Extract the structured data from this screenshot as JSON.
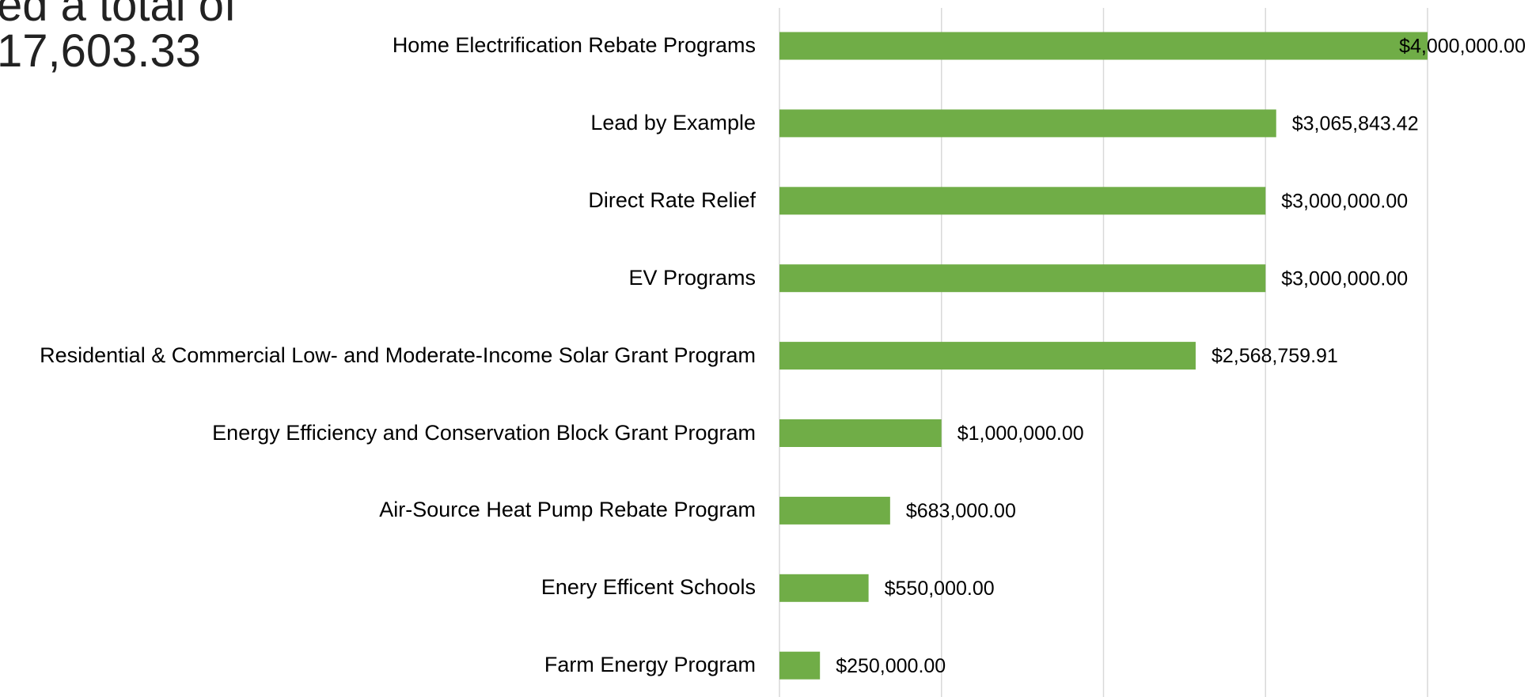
{
  "heading_lines": [
    "ed a total of",
    "17,603.33"
  ],
  "chart_data": {
    "type": "bar",
    "orientation": "horizontal",
    "categories": [
      "Home Electrification Rebate Programs",
      "Lead by Example",
      "Direct Rate Relief",
      "EV Programs",
      "Residential & Commercial Low- and Moderate-Income Solar Grant Program",
      "Energy Efficiency and Conservation Block Grant Program",
      "Air-Source Heat Pump Rebate Program",
      "Enery Efficent Schools",
      "Farm Energy Program"
    ],
    "values": [
      4000000,
      3065843.42,
      3000000,
      3000000,
      2568759.91,
      1000000,
      683000,
      550000,
      250000
    ],
    "value_labels": [
      "$4,000,000.00",
      "$3,065,843.42",
      "$3,000,000.00",
      "$3,000,000.00",
      "$2,568,759.91",
      "$1,000,000.00",
      "$683,000.00",
      "$550,000.00",
      "$250,000.00"
    ],
    "color": "#70ad47",
    "xlim": [
      0,
      4000000
    ],
    "xticks": [
      0,
      1000000,
      2000000,
      3000000,
      4000000
    ],
    "grid": true
  }
}
